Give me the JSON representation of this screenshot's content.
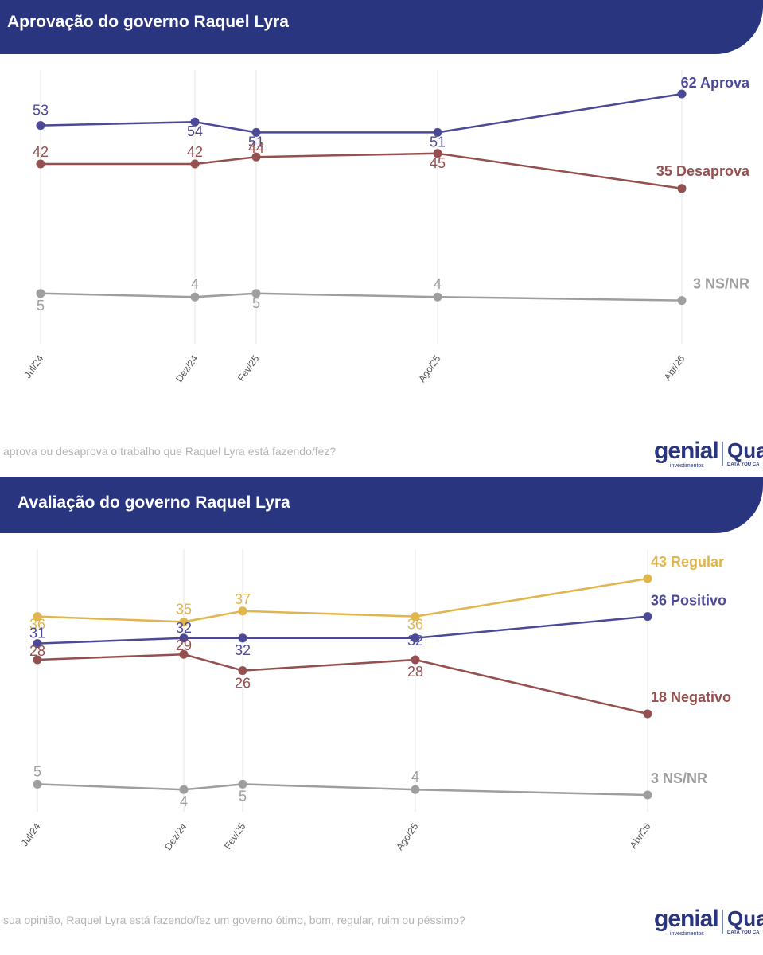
{
  "panels": [
    {
      "title": "Aprovação do governo Raquel Lyra",
      "question": "aprova ou desaprova o trabalho que Raquel Lyra está fazendo/fez?",
      "logos": {
        "genial": "genial",
        "genial_sub": "investimentos",
        "quaest": "Qua",
        "quaest_sub": "DATA YOU CA"
      }
    },
    {
      "title": "Avaliação do governo Raquel Lyra",
      "question": "sua opinião, Raquel Lyra está fazendo/fez um governo ótimo, bom, regular, ruim ou péssimo?",
      "logos": {
        "genial": "genial",
        "genial_sub": "investimentos",
        "quaest": "Qua",
        "quaest_sub": "DATA YOU CA"
      }
    }
  ],
  "chart_data": [
    {
      "type": "line",
      "title": "Aprovação do governo Raquel Lyra",
      "categories": [
        "Jul/24",
        "Dez/24",
        "Fev/25",
        "Ago/25",
        "Abr/26"
      ],
      "grid": "vertical",
      "legend": "end-labels-right",
      "series": [
        {
          "name": "Aprova",
          "color": "#4c4a96",
          "values": [
            53,
            54,
            51,
            51,
            62
          ],
          "labels": [
            "53",
            "54",
            "51",
            "51",
            "62 Aprova"
          ]
        },
        {
          "name": "Desaprova",
          "color": "#94504f",
          "values": [
            42,
            42,
            44,
            45,
            35
          ],
          "labels": [
            "42",
            "42",
            "44",
            "45",
            "35 Desaprova"
          ]
        },
        {
          "name": "NS/NR",
          "color": "#9e9e9e",
          "values": [
            5,
            4,
            5,
            4,
            3
          ],
          "labels": [
            "5",
            "4",
            "5",
            "4",
            "3 NS/NR"
          ]
        }
      ]
    },
    {
      "type": "line",
      "title": "Avaliação do governo Raquel Lyra",
      "categories": [
        "Jul/24",
        "Dez/24",
        "Fev/25",
        "Ago/25",
        "Abr/26"
      ],
      "grid": "vertical",
      "legend": "end-labels-right",
      "series": [
        {
          "name": "Regular",
          "color": "#e0b64c",
          "values": [
            36,
            35,
            37,
            36,
            43
          ],
          "labels": [
            "36",
            "35",
            "37",
            "36",
            "43 Regular"
          ]
        },
        {
          "name": "Positivo",
          "color": "#4c4a96",
          "values": [
            31,
            32,
            32,
            32,
            36
          ],
          "labels": [
            "31",
            "32",
            "32",
            "32",
            "36 Positivo"
          ]
        },
        {
          "name": "Negativo",
          "color": "#94504f",
          "values": [
            28,
            29,
            26,
            28,
            18
          ],
          "labels": [
            "28",
            "29",
            "26",
            "28",
            "18 Negativo"
          ]
        },
        {
          "name": "NS/NR",
          "color": "#9e9e9e",
          "values": [
            5,
            4,
            5,
            4,
            3
          ],
          "labels": [
            "5",
            "4",
            "5",
            "4",
            "3 NS/NR"
          ]
        }
      ]
    }
  ]
}
